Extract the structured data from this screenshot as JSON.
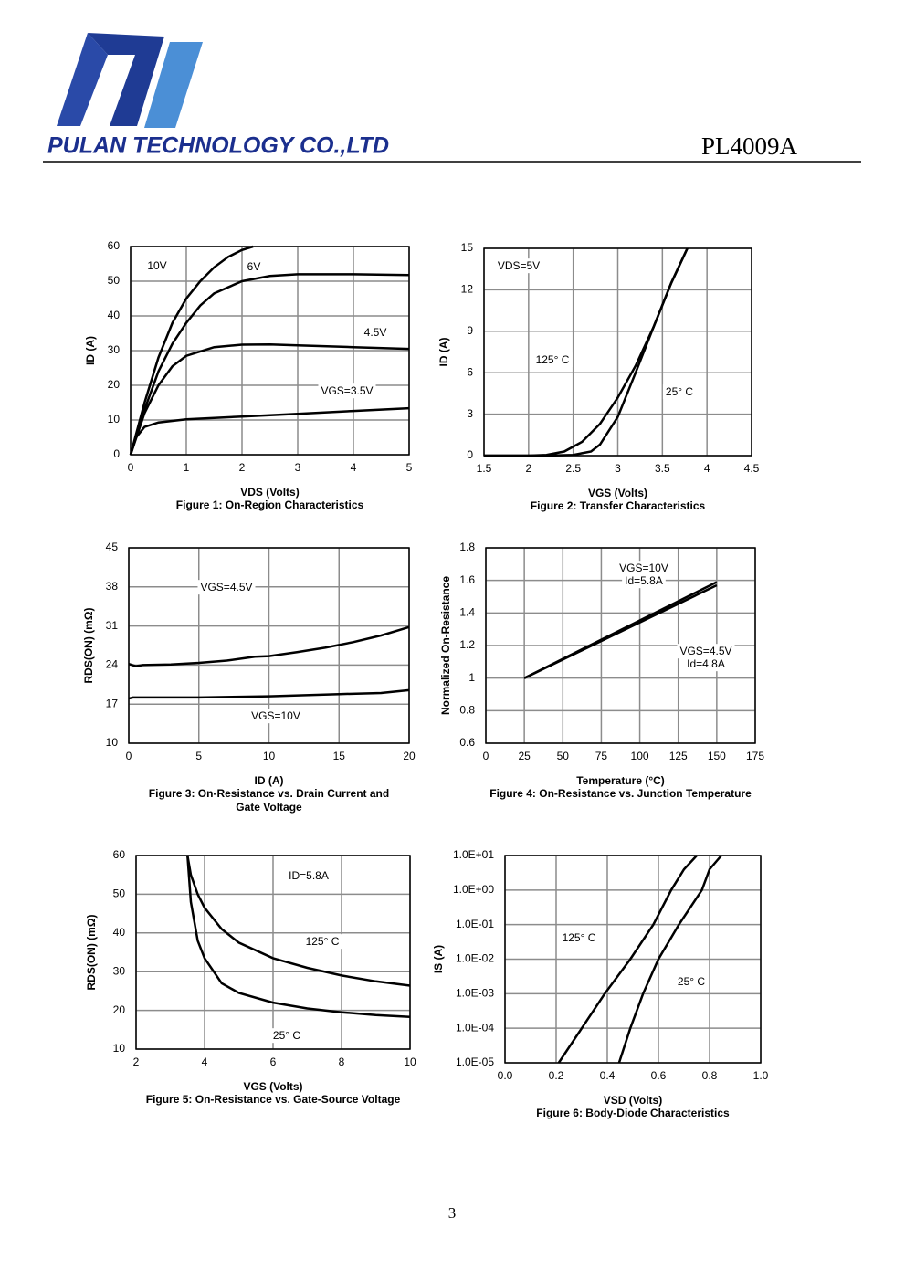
{
  "header": {
    "company": "PULAN TECHNOLOGY CO.,LTD",
    "part": "PL4009A"
  },
  "page_number": "3",
  "chart_data": [
    {
      "type": "line",
      "xlabel": "VDS (Volts)",
      "ylabel": "ID (A)",
      "caption": [
        "Figure 1: On-Region Characteristics"
      ],
      "xlim": [
        0,
        5
      ],
      "ylim": [
        0,
        60
      ],
      "xticks": [
        0,
        1,
        2,
        3,
        4,
        5
      ],
      "yticks": [
        0,
        10,
        20,
        30,
        40,
        50,
        60
      ],
      "grid": true,
      "series": [
        {
          "name": "10V",
          "color": "#000000",
          "x": [
            0,
            0.25,
            0.5,
            0.75,
            1,
            1.25,
            1.5,
            1.75,
            2,
            2.2
          ],
          "values": [
            0,
            15,
            28,
            38,
            45,
            50,
            54,
            57,
            59,
            60
          ]
        },
        {
          "name": "6V",
          "color": "#000000",
          "x": [
            0,
            0.25,
            0.5,
            0.75,
            1,
            1.25,
            1.5,
            2,
            2.5,
            3,
            4,
            5
          ],
          "values": [
            0,
            13,
            24,
            32,
            38,
            43,
            46.5,
            50,
            51.5,
            52,
            52,
            51.8
          ]
        },
        {
          "name": "4.5V",
          "color": "#000000",
          "x": [
            0,
            0.25,
            0.5,
            0.75,
            1,
            1.5,
            2,
            2.5,
            3,
            4,
            5
          ],
          "values": [
            0,
            12,
            20,
            25.5,
            28.5,
            31,
            31.7,
            31.8,
            31.5,
            31,
            30.5
          ]
        },
        {
          "name": "VGS=3.5V",
          "color": "#000000",
          "x": [
            0,
            0.1,
            0.25,
            0.5,
            1,
            2,
            3,
            4,
            5
          ],
          "values": [
            0,
            5,
            8,
            9.3,
            10.2,
            11,
            11.8,
            12.6,
            13.4
          ]
        }
      ]
    },
    {
      "type": "line",
      "xlabel": "VGS (Volts)",
      "ylabel": "ID (A)",
      "caption": [
        "Figure 2: Transfer Characteristics"
      ],
      "annotation": "VDS=5V",
      "xlim": [
        1.5,
        4.5
      ],
      "ylim": [
        0,
        15
      ],
      "xticks": [
        1.5,
        2,
        2.5,
        3,
        3.5,
        4,
        4.5
      ],
      "yticks": [
        0,
        3,
        6,
        9,
        12,
        15
      ],
      "grid": true,
      "series": [
        {
          "name": "125° C",
          "color": "#000000",
          "x": [
            1.5,
            2,
            2.2,
            2.4,
            2.6,
            2.8,
            3,
            3.2,
            3.4,
            3.6,
            3.78
          ],
          "values": [
            0,
            0,
            0.05,
            0.3,
            1,
            2.3,
            4.2,
            6.5,
            9.3,
            12.5,
            15
          ]
        },
        {
          "name": "25° C",
          "color": "#000000",
          "x": [
            1.5,
            2.2,
            2.5,
            2.7,
            2.8,
            3,
            3.2,
            3.4,
            3.6,
            3.78
          ],
          "values": [
            0,
            0,
            0.05,
            0.3,
            0.8,
            2.8,
            6,
            9.3,
            12.5,
            15
          ]
        }
      ]
    },
    {
      "type": "line",
      "xlabel": "ID (A)",
      "ylabel": "RDS(ON) (mΩ)",
      "caption": [
        "Figure 3: On-Resistance vs. Drain Current and",
        "Gate Voltage"
      ],
      "xlim": [
        0,
        20
      ],
      "ylim": [
        10,
        45
      ],
      "xticks": [
        0,
        5,
        10,
        15,
        20
      ],
      "yticks": [
        10,
        17,
        24,
        31,
        38,
        45
      ],
      "grid": true,
      "series": [
        {
          "name": "VGS=4.5V",
          "color": "#000000",
          "x": [
            0,
            0.5,
            1,
            3,
            5,
            7,
            9,
            10,
            12,
            14,
            16,
            18,
            20
          ],
          "values": [
            24.2,
            23.8,
            24,
            24.1,
            24.4,
            24.8,
            25.5,
            25.6,
            26.3,
            27.1,
            28.1,
            29.3,
            30.8
          ]
        },
        {
          "name": "VGS=10V",
          "color": "#000000",
          "x": [
            0,
            0.3,
            5,
            10,
            15,
            18,
            20
          ],
          "values": [
            18,
            18.2,
            18.2,
            18.4,
            18.8,
            19,
            19.5
          ]
        }
      ]
    },
    {
      "type": "line",
      "xlabel": "Temperature (°C)",
      "ylabel": "Normalized On-Resistance",
      "caption": [
        "Figure 4: On-Resistance vs. Junction Temperature"
      ],
      "xlim": [
        0,
        175
      ],
      "ylim": [
        0.6,
        1.8
      ],
      "xticks": [
        0,
        25,
        50,
        75,
        100,
        125,
        150,
        175
      ],
      "yticks": [
        0.6,
        0.8,
        1,
        1.2,
        1.4,
        1.6,
        1.8
      ],
      "grid": true,
      "series": [
        {
          "name": "VGS=10V",
          "condition": "Id=5.8A",
          "color": "#000000",
          "x": [
            25,
            150
          ],
          "values": [
            1,
            1.59
          ]
        },
        {
          "name": "VGS=4.5V",
          "condition": "Id=4.8A",
          "color": "#000000",
          "x": [
            25,
            150
          ],
          "values": [
            1,
            1.57
          ]
        }
      ]
    },
    {
      "type": "line",
      "xlabel": "VGS (Volts)",
      "ylabel": "RDS(ON) (mΩ)",
      "caption": [
        "Figure 5: On-Resistance vs. Gate-Source Voltage"
      ],
      "annotation": "ID=5.8A",
      "xlim": [
        2,
        10
      ],
      "ylim": [
        10,
        60
      ],
      "xticks": [
        2,
        4,
        6,
        8,
        10
      ],
      "yticks": [
        10,
        20,
        30,
        40,
        50,
        60
      ],
      "grid": true,
      "series": [
        {
          "name": "125° C",
          "color": "#000000",
          "x": [
            3.5,
            3.6,
            3.8,
            4,
            4.5,
            5,
            6,
            7,
            8,
            9,
            10
          ],
          "values": [
            60,
            55,
            50,
            46.5,
            41,
            37.5,
            33.5,
            31,
            29,
            27.5,
            26.4
          ]
        },
        {
          "name": "25° C",
          "color": "#000000",
          "x": [
            3.5,
            3.6,
            3.8,
            4,
            4.5,
            5,
            6,
            7,
            8,
            9,
            10
          ],
          "values": [
            60,
            48,
            38,
            33.5,
            27,
            24.5,
            22,
            20.5,
            19.5,
            18.8,
            18.3
          ]
        }
      ]
    },
    {
      "type": "line",
      "xlabel": "VSD (Volts)",
      "ylabel": "IS (A)",
      "caption": [
        "Figure 6: Body-Diode Characteristics"
      ],
      "ylog": true,
      "xlim": [
        0,
        1
      ],
      "ylim": [
        1e-05,
        10
      ],
      "xticks": [
        {
          "value": 0,
          "label": "0.0"
        },
        0.2,
        0.4,
        0.6,
        0.8,
        {
          "value": 1,
          "label": "1.0"
        }
      ],
      "yticks": [
        {
          "value": 1e-05,
          "label": "1.0E-05"
        },
        {
          "value": 0.0001,
          "label": "1.0E-04"
        },
        {
          "value": 0.001,
          "label": "1.0E-03"
        },
        {
          "value": 0.01,
          "label": "1.0E-02"
        },
        {
          "value": 0.1,
          "label": "1.0E-01"
        },
        {
          "value": 1,
          "label": "1.0E+00"
        },
        {
          "value": 10,
          "label": "1.0E+01"
        }
      ],
      "grid": true,
      "series": [
        {
          "name": "125° C",
          "color": "#000000",
          "x": [
            0.21,
            0.3,
            0.39,
            0.49,
            0.58,
            0.65,
            0.7,
            0.75
          ],
          "values": [
            1e-05,
            0.0001,
            0.001,
            0.01,
            0.1,
            1,
            4,
            10
          ]
        },
        {
          "name": "25° C",
          "color": "#000000",
          "x": [
            0.446,
            0.49,
            0.54,
            0.6,
            0.68,
            0.77,
            0.8,
            0.846
          ],
          "values": [
            1e-05,
            0.0001,
            0.001,
            0.01,
            0.1,
            1,
            4,
            10
          ]
        }
      ]
    }
  ]
}
